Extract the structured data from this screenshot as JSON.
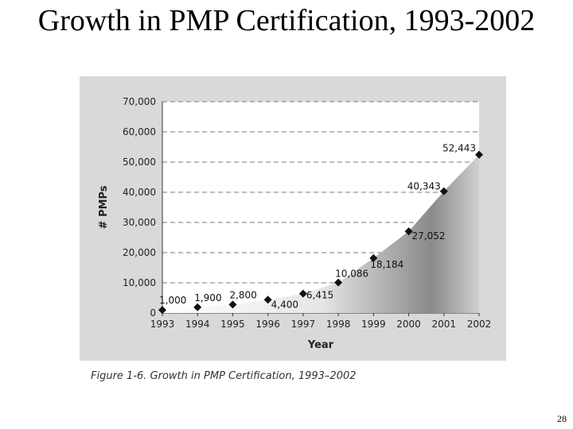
{
  "slide": {
    "title": "Growth in PMP Certification, 1993-2002",
    "page_number": "28"
  },
  "figure": {
    "caption": "Figure 1-6. Growth in PMP Certification, 1993–2002"
  },
  "chart_data": {
    "type": "area",
    "title": "",
    "xlabel": "Year",
    "ylabel": "# PMPs",
    "categories": [
      "1993",
      "1994",
      "1995",
      "1996",
      "1997",
      "1998",
      "1999",
      "2000",
      "2001",
      "2002"
    ],
    "values": [
      1000,
      1900,
      2800,
      4400,
      6415,
      10086,
      18184,
      27052,
      40343,
      52443
    ],
    "data_labels": [
      "1,000",
      "1,900",
      "2,800",
      "4,400",
      "6,415",
      "10,086",
      "18,184",
      "27,052",
      "40,343",
      "52,443"
    ],
    "ylim": [
      0,
      70000
    ],
    "yticks": [
      0,
      10000,
      20000,
      30000,
      40000,
      50000,
      60000,
      70000
    ],
    "ytick_labels": [
      "0",
      "10,000",
      "20,000",
      "30,000",
      "40,000",
      "50,000",
      "60,000",
      "70,000"
    ],
    "grid": true,
    "marker": "diamond"
  }
}
